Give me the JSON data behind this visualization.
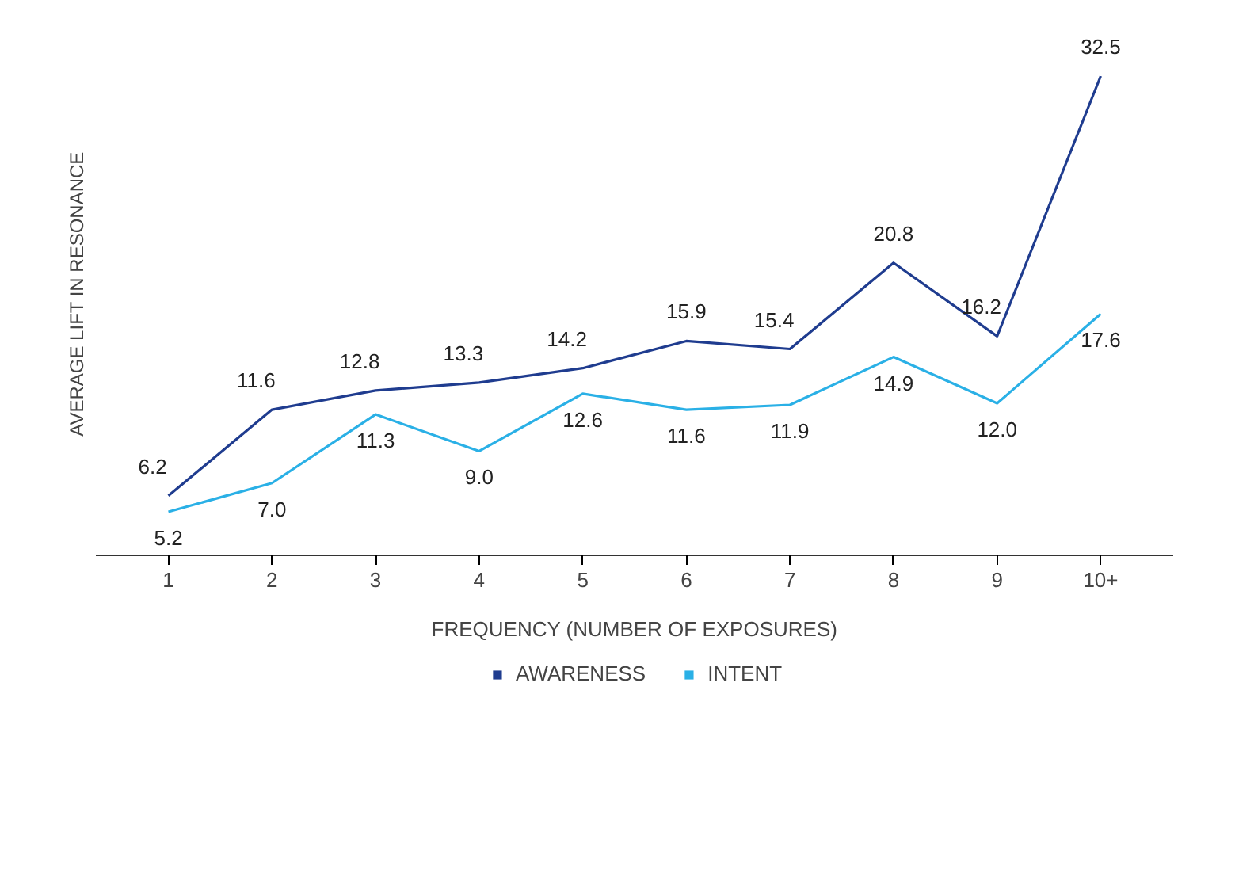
{
  "chart_data": {
    "type": "line",
    "xlabel": "FREQUENCY (NUMBER OF EXPOSURES)",
    "ylabel": "AVERAGE LIFT IN RESONANCE",
    "categories": [
      "1",
      "2",
      "3",
      "4",
      "5",
      "6",
      "7",
      "8",
      "9",
      "10+"
    ],
    "series": [
      {
        "name": "AWARENESS",
        "color": "#1f3c8f",
        "values": [
          6.2,
          11.6,
          12.8,
          13.3,
          14.2,
          15.9,
          15.4,
          20.8,
          16.2,
          32.5
        ],
        "value_labels": [
          "6.2",
          "11.6",
          "12.8",
          "13.3",
          "14.2",
          "15.9",
          "15.4",
          "20.8",
          "16.2",
          "32.5"
        ]
      },
      {
        "name": "INTENT",
        "color": "#2ab0e6",
        "values": [
          5.2,
          7.0,
          11.3,
          9.0,
          12.6,
          11.6,
          11.9,
          14.9,
          12.0,
          17.6
        ],
        "value_labels": [
          "5.2",
          "7.0",
          "11.3",
          "9.0",
          "12.6",
          "11.6",
          "11.9",
          "14.9",
          "12.0",
          "17.6"
        ]
      }
    ],
    "grid": false,
    "legend": "bottom",
    "line_style": "solid"
  }
}
